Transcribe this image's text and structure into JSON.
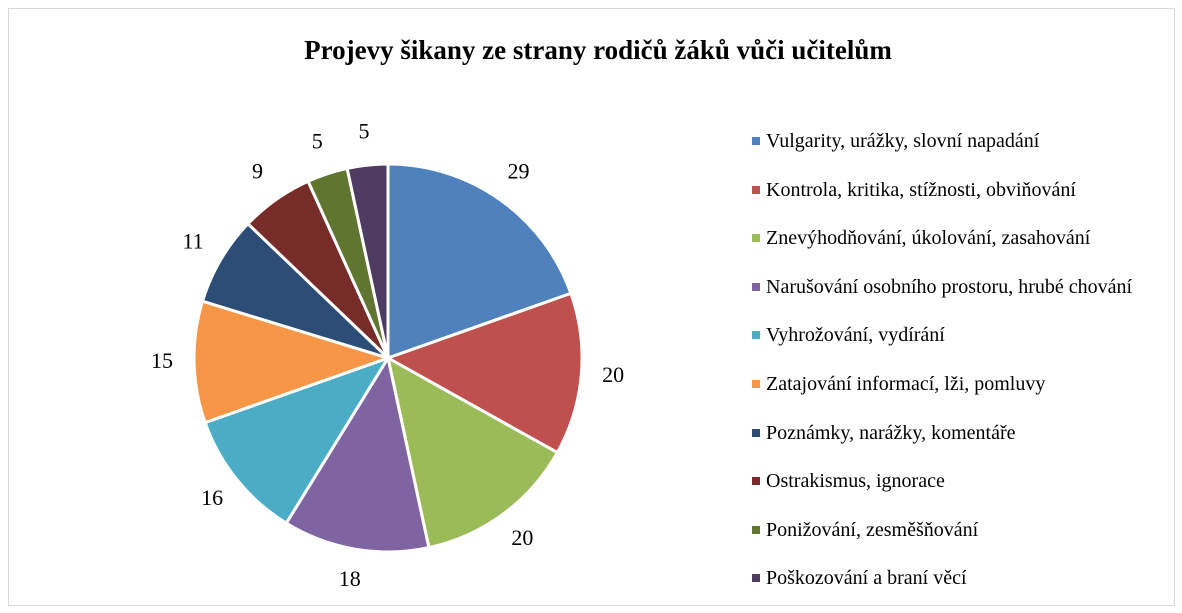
{
  "chart_data": {
    "type": "pie",
    "title": "Projevy šikany ze strany rodičů žáků vůči učitelům",
    "categories": [
      "Vulgarity, urážky, slovní napadání",
      "Kontrola, kritika, stížnosti, obviňování",
      "Znevýhodňování, úkolování, zasahování",
      "Narušování osobního prostoru, hrubé chování",
      "Vyhrožování, vydírání",
      "Zatajování informací, lži, pomluvy",
      "Poznámky, narážky, komentáře",
      "Ostrakismus, ignorace",
      "Ponižování, zesměšňování",
      "Poškozování a braní věcí"
    ],
    "values": [
      29,
      20,
      20,
      18,
      16,
      15,
      11,
      9,
      5,
      5
    ],
    "colors": [
      "#4f81bd",
      "#c0504d",
      "#9bbb59",
      "#8064a2",
      "#4bacc6",
      "#f79646",
      "#2c4d75",
      "#772c2a",
      "#5f7530",
      "#4d3b62"
    ],
    "legend": "right"
  }
}
